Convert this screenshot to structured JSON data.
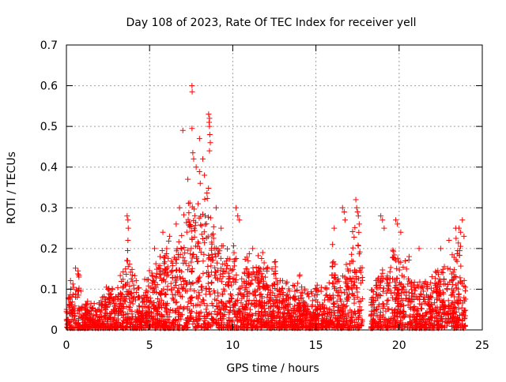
{
  "chart_data": {
    "type": "scatter",
    "title": "Day 108 of 2023, Rate Of TEC Index for receiver yell",
    "xlabel": "GPS time / hours",
    "ylabel": "ROTI / TECUs",
    "xlim": [
      0,
      25
    ],
    "ylim": [
      0,
      0.7
    ],
    "xticks": [
      0,
      5,
      10,
      15,
      20,
      25
    ],
    "yticks": [
      0,
      0.1,
      0.2,
      0.3,
      0.4,
      0.5,
      0.6,
      0.7
    ],
    "xtick_labels": [
      "0",
      "5",
      "10",
      "15",
      "20",
      "25"
    ],
    "ytick_labels": [
      "0",
      "0.1",
      "0.2",
      "0.3",
      "0.4",
      "0.5",
      "0.6",
      "0.7"
    ],
    "grid": true,
    "marker": "+",
    "marker_color": "#ff0000",
    "data_gaps_hours": [
      [
        17.8,
        18.3
      ]
    ],
    "envelope": {
      "description": "Dense point cloud; approximate upper envelope (hour, ROTI) of the bulk of points",
      "points": [
        [
          0.0,
          0.05
        ],
        [
          0.3,
          0.12
        ],
        [
          0.7,
          0.13
        ],
        [
          1.0,
          0.06
        ],
        [
          2.0,
          0.06
        ],
        [
          2.5,
          0.1
        ],
        [
          3.0,
          0.08
        ],
        [
          3.7,
          0.17
        ],
        [
          4.5,
          0.09
        ],
        [
          5.0,
          0.13
        ],
        [
          5.5,
          0.18
        ],
        [
          6.0,
          0.2
        ],
        [
          6.5,
          0.22
        ],
        [
          7.0,
          0.28
        ],
        [
          7.5,
          0.33
        ],
        [
          8.0,
          0.38
        ],
        [
          8.3,
          0.32
        ],
        [
          8.6,
          0.3
        ],
        [
          9.0,
          0.22
        ],
        [
          9.5,
          0.2
        ],
        [
          10.0,
          0.18
        ],
        [
          10.5,
          0.15
        ],
        [
          11.0,
          0.17
        ],
        [
          11.5,
          0.16
        ],
        [
          12.0,
          0.14
        ],
        [
          12.5,
          0.15
        ],
        [
          13.0,
          0.11
        ],
        [
          13.5,
          0.09
        ],
        [
          14.0,
          0.12
        ],
        [
          14.5,
          0.09
        ],
        [
          15.0,
          0.11
        ],
        [
          15.5,
          0.08
        ],
        [
          16.0,
          0.17
        ],
        [
          16.5,
          0.13
        ],
        [
          17.0,
          0.18
        ],
        [
          17.5,
          0.26
        ],
        [
          17.8,
          0.14
        ],
        [
          18.3,
          0.1
        ],
        [
          18.7,
          0.15
        ],
        [
          19.2,
          0.13
        ],
        [
          19.7,
          0.2
        ],
        [
          20.2,
          0.17
        ],
        [
          20.7,
          0.14
        ],
        [
          21.2,
          0.11
        ],
        [
          21.7,
          0.12
        ],
        [
          22.2,
          0.14
        ],
        [
          22.7,
          0.16
        ],
        [
          23.2,
          0.18
        ],
        [
          23.6,
          0.23
        ],
        [
          24.0,
          0.11
        ]
      ]
    },
    "notable_points": [
      {
        "x": 0.7,
        "y": 0.145
      },
      {
        "x": 0.75,
        "y": 0.13
      },
      {
        "x": 2.4,
        "y": 0.105
      },
      {
        "x": 2.5,
        "y": 0.1
      },
      {
        "x": 3.65,
        "y": 0.28
      },
      {
        "x": 3.7,
        "y": 0.27
      },
      {
        "x": 3.72,
        "y": 0.25
      },
      {
        "x": 3.7,
        "y": 0.22
      },
      {
        "x": 3.68,
        "y": 0.17
      },
      {
        "x": 5.3,
        "y": 0.2
      },
      {
        "x": 5.8,
        "y": 0.24
      },
      {
        "x": 6.2,
        "y": 0.23
      },
      {
        "x": 6.6,
        "y": 0.26
      },
      {
        "x": 6.8,
        "y": 0.3
      },
      {
        "x": 7.0,
        "y": 0.49
      },
      {
        "x": 7.3,
        "y": 0.37
      },
      {
        "x": 7.55,
        "y": 0.6
      },
      {
        "x": 7.56,
        "y": 0.585
      },
      {
        "x": 7.55,
        "y": 0.495
      },
      {
        "x": 7.6,
        "y": 0.435
      },
      {
        "x": 7.65,
        "y": 0.42
      },
      {
        "x": 7.8,
        "y": 0.4
      },
      {
        "x": 8.0,
        "y": 0.47
      },
      {
        "x": 8.2,
        "y": 0.42
      },
      {
        "x": 8.3,
        "y": 0.38
      },
      {
        "x": 8.55,
        "y": 0.53
      },
      {
        "x": 8.6,
        "y": 0.52
      },
      {
        "x": 8.58,
        "y": 0.51
      },
      {
        "x": 8.6,
        "y": 0.5
      },
      {
        "x": 8.62,
        "y": 0.48
      },
      {
        "x": 8.65,
        "y": 0.46
      },
      {
        "x": 8.6,
        "y": 0.44
      },
      {
        "x": 9.0,
        "y": 0.3
      },
      {
        "x": 9.3,
        "y": 0.25
      },
      {
        "x": 10.2,
        "y": 0.3
      },
      {
        "x": 10.3,
        "y": 0.28
      },
      {
        "x": 10.4,
        "y": 0.27
      },
      {
        "x": 11.2,
        "y": 0.2
      },
      {
        "x": 11.8,
        "y": 0.19
      },
      {
        "x": 16.0,
        "y": 0.21
      },
      {
        "x": 16.1,
        "y": 0.25
      },
      {
        "x": 16.6,
        "y": 0.3
      },
      {
        "x": 16.7,
        "y": 0.29
      },
      {
        "x": 16.75,
        "y": 0.27
      },
      {
        "x": 17.4,
        "y": 0.32
      },
      {
        "x": 17.45,
        "y": 0.3
      },
      {
        "x": 17.5,
        "y": 0.29
      },
      {
        "x": 17.55,
        "y": 0.28
      },
      {
        "x": 17.6,
        "y": 0.26
      },
      {
        "x": 18.9,
        "y": 0.28
      },
      {
        "x": 19.0,
        "y": 0.27
      },
      {
        "x": 19.1,
        "y": 0.25
      },
      {
        "x": 19.8,
        "y": 0.27
      },
      {
        "x": 19.9,
        "y": 0.26
      },
      {
        "x": 20.1,
        "y": 0.24
      },
      {
        "x": 20.6,
        "y": 0.18
      },
      {
        "x": 21.2,
        "y": 0.2
      },
      {
        "x": 22.5,
        "y": 0.2
      },
      {
        "x": 23.0,
        "y": 0.22
      },
      {
        "x": 23.4,
        "y": 0.25
      },
      {
        "x": 23.6,
        "y": 0.25
      },
      {
        "x": 23.7,
        "y": 0.24
      },
      {
        "x": 23.8,
        "y": 0.27
      },
      {
        "x": 23.9,
        "y": 0.23
      }
    ]
  }
}
